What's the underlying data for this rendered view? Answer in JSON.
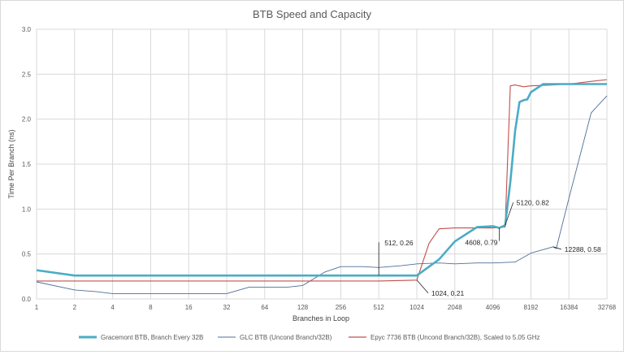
{
  "chart_data": {
    "type": "line",
    "title": "BTB Speed and Capacity",
    "xlabel": "Branches in Loop",
    "ylabel": "Time  Per Branch (ns)",
    "x_scale": "log2",
    "xlim": [
      1,
      32768
    ],
    "ylim": [
      0,
      3.0
    ],
    "x_ticks": [
      "1",
      "2",
      "4",
      "8",
      "16",
      "32",
      "64",
      "128",
      "256",
      "512",
      "1024",
      "2048",
      "4096",
      "8192",
      "16384",
      "32768"
    ],
    "y_ticks": [
      "0.0",
      "0.5",
      "1.0",
      "1.5",
      "2.0",
      "2.5",
      "3.0"
    ],
    "grid": true,
    "legend_position": "bottom",
    "series": [
      {
        "name": "Gracemont BTB, Branch Every 32B",
        "color": "#4bacc6",
        "x": [
          1,
          2,
          4,
          8,
          16,
          32,
          64,
          128,
          256,
          512,
          1024,
          1536,
          2048,
          3072,
          4096,
          4608,
          5120,
          5632,
          6144,
          6656,
          7168,
          7680,
          8192,
          10240,
          12288,
          16384,
          24576,
          32768
        ],
        "y": [
          0.32,
          0.26,
          0.26,
          0.26,
          0.26,
          0.26,
          0.26,
          0.26,
          0.26,
          0.26,
          0.26,
          0.44,
          0.64,
          0.8,
          0.81,
          0.79,
          0.82,
          1.3,
          1.87,
          2.19,
          2.21,
          2.22,
          2.3,
          2.39,
          2.39,
          2.39,
          2.39,
          2.39
        ]
      },
      {
        "name": "GLC BTB (Uncond Branch/32B)",
        "color": "#4f6f96",
        "x": [
          1,
          2,
          3,
          4,
          6,
          8,
          12,
          16,
          24,
          32,
          48,
          64,
          96,
          128,
          192,
          256,
          384,
          512,
          768,
          1024,
          1536,
          2048,
          3072,
          4096,
          6144,
          8192,
          12288,
          13000,
          16384,
          24576,
          32768
        ],
        "y": [
          0.19,
          0.1,
          0.08,
          0.06,
          0.06,
          0.06,
          0.06,
          0.06,
          0.06,
          0.06,
          0.13,
          0.13,
          0.13,
          0.15,
          0.3,
          0.36,
          0.36,
          0.35,
          0.37,
          0.39,
          0.4,
          0.39,
          0.4,
          0.4,
          0.41,
          0.51,
          0.58,
          0.56,
          1.12,
          2.07,
          2.26
        ]
      },
      {
        "name": "Epyc 7736 BTB (Uncond Branch/32B), Scaled to 5.05 GHz",
        "color": "#c0504d",
        "x": [
          1,
          2,
          4,
          8,
          16,
          32,
          64,
          128,
          256,
          512,
          1024,
          1280,
          1536,
          2048,
          3072,
          4096,
          5120,
          5632,
          6144,
          6656,
          7168,
          8192,
          12288,
          16384,
          24576,
          32768
        ],
        "y": [
          0.2,
          0.2,
          0.2,
          0.2,
          0.2,
          0.2,
          0.2,
          0.2,
          0.2,
          0.2,
          0.21,
          0.62,
          0.78,
          0.79,
          0.79,
          0.79,
          0.8,
          2.37,
          2.38,
          2.37,
          2.36,
          2.37,
          2.38,
          2.39,
          2.42,
          2.44
        ]
      }
    ],
    "annotations": [
      {
        "text": "512, 0.26",
        "x": 512,
        "y": 0.26
      },
      {
        "text": "1024, 0.21",
        "x": 1024,
        "y": 0.21
      },
      {
        "text": "4608, 0.79",
        "x": 4608,
        "y": 0.79
      },
      {
        "text": "5120, 0.82",
        "x": 5120,
        "y": 0.82
      },
      {
        "text": "12288, 0.58",
        "x": 12288,
        "y": 0.58
      }
    ]
  }
}
